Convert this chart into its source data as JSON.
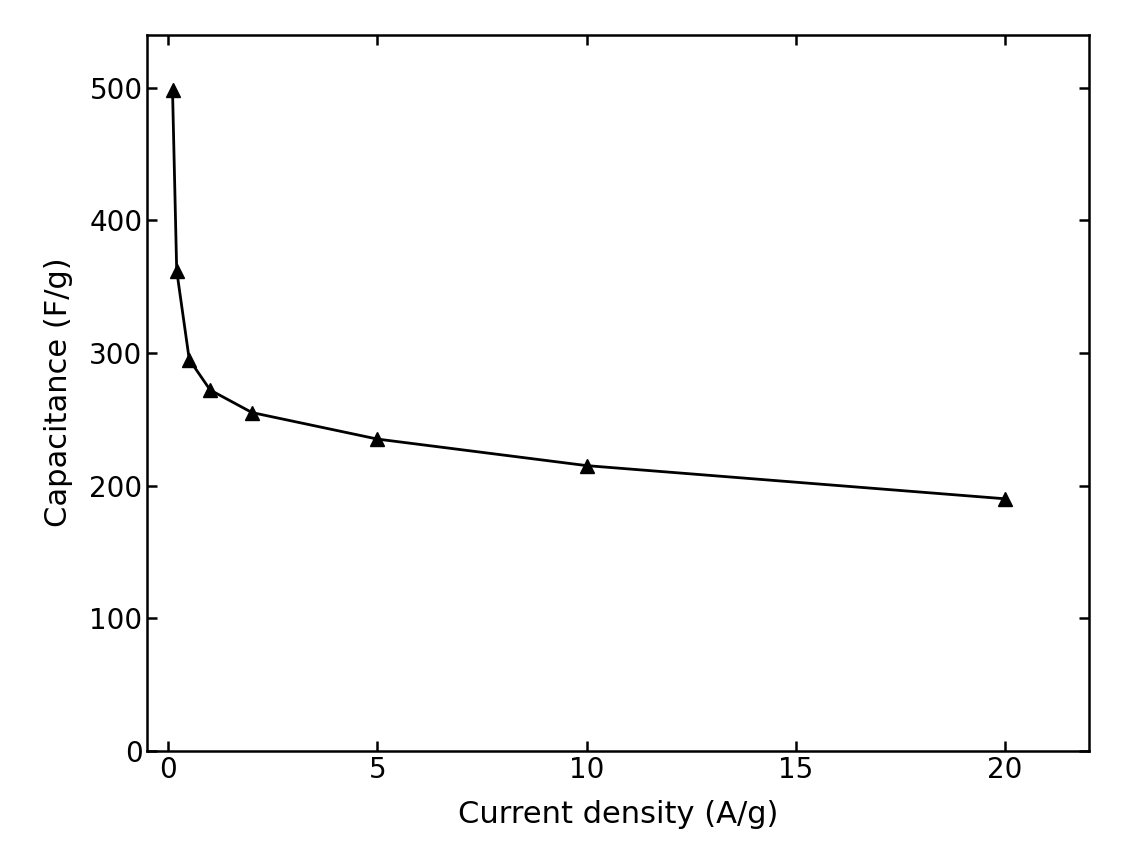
{
  "x": [
    0.1,
    0.2,
    0.5,
    1.0,
    2.0,
    5.0,
    10.0,
    20.0
  ],
  "y": [
    498,
    362,
    295,
    272,
    255,
    235,
    215,
    190
  ],
  "xlabel": "Current density (A/g)",
  "ylabel": "Capacitance (F/g)",
  "xlim": [
    -0.5,
    22
  ],
  "ylim": [
    0,
    540
  ],
  "xticks": [
    0,
    5,
    10,
    15,
    20
  ],
  "yticks": [
    0,
    100,
    200,
    300,
    400,
    500
  ],
  "line_color": "#000000",
  "marker": "^",
  "marker_size": 10,
  "line_width": 2.0,
  "xlabel_fontsize": 22,
  "ylabel_fontsize": 22,
  "tick_fontsize": 20,
  "background_color": "#ffffff",
  "figure_facecolor": "#ffffff"
}
